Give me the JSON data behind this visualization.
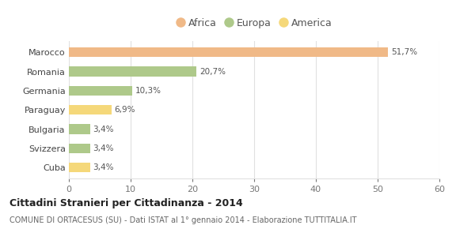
{
  "categories": [
    "Marocco",
    "Romania",
    "Germania",
    "Paraguay",
    "Bulgaria",
    "Svizzera",
    "Cuba"
  ],
  "values": [
    51.7,
    20.7,
    10.3,
    6.9,
    3.4,
    3.4,
    3.4
  ],
  "labels": [
    "51,7%",
    "20,7%",
    "10,3%",
    "6,9%",
    "3,4%",
    "3,4%",
    "3,4%"
  ],
  "colors": [
    "#f0b987",
    "#aec98a",
    "#aec98a",
    "#f5d87a",
    "#aec98a",
    "#aec98a",
    "#f5d87a"
  ],
  "legend_labels": [
    "Africa",
    "Europa",
    "America"
  ],
  "legend_colors": [
    "#f0b987",
    "#aec98a",
    "#f5d87a"
  ],
  "xlim": [
    0,
    60
  ],
  "xticks": [
    0,
    10,
    20,
    30,
    40,
    50,
    60
  ],
  "title_bold": "Cittadini Stranieri per Cittadinanza - 2014",
  "subtitle": "COMUNE DI ORTACESUS (SU) - Dati ISTAT al 1° gennaio 2014 - Elaborazione TUTTITALIA.IT",
  "bg_color": "#ffffff",
  "grid_color": "#e0e0e0",
  "bar_height": 0.5
}
